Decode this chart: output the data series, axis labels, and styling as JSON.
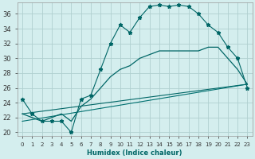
{
  "xlabel": "Humidex (Indice chaleur)",
  "bg_color": "#d4eeee",
  "grid_color": "#b0d0d0",
  "line_color_dark": "#006666",
  "line_color_mid": "#007070",
  "xlim": [
    -0.5,
    23.5
  ],
  "ylim": [
    19.5,
    37.5
  ],
  "yticks": [
    20,
    22,
    24,
    26,
    28,
    30,
    32,
    34,
    36
  ],
  "xticks": [
    0,
    1,
    2,
    3,
    4,
    5,
    6,
    7,
    8,
    9,
    10,
    11,
    12,
    13,
    14,
    15,
    16,
    17,
    18,
    19,
    20,
    21,
    22,
    23
  ],
  "xtick_labels": [
    "0",
    "1",
    "2",
    "3",
    "4",
    "5",
    "6",
    "7",
    "8",
    "9",
    "10",
    "11",
    "12",
    "13",
    "14",
    "15",
    "16",
    "17",
    "18",
    "19",
    "20",
    "21",
    "22",
    "23"
  ],
  "series1_x": [
    0,
    1,
    2,
    3,
    4,
    5,
    6,
    7,
    8,
    9,
    10,
    11,
    12,
    13,
    14,
    15,
    16,
    17,
    18,
    19,
    20,
    21,
    22,
    23
  ],
  "series1_y": [
    24.5,
    22.5,
    21.5,
    21.5,
    21.5,
    20.0,
    24.5,
    25.0,
    28.5,
    32.0,
    34.5,
    33.5,
    35.5,
    37.0,
    37.2,
    37.0,
    37.2,
    37.0,
    36.0,
    34.5,
    33.5,
    31.5,
    30.0,
    26.0
  ],
  "series2_x": [
    0,
    1,
    2,
    3,
    4,
    5,
    6,
    7,
    8,
    9,
    10,
    11,
    12,
    13,
    14,
    15,
    16,
    17,
    18,
    19,
    20,
    21,
    22,
    23
  ],
  "series2_y": [
    22.5,
    22.0,
    21.5,
    22.0,
    22.5,
    21.5,
    23.5,
    24.5,
    26.0,
    27.5,
    28.5,
    29.0,
    30.0,
    30.5,
    31.0,
    31.0,
    31.0,
    31.0,
    31.0,
    31.5,
    31.5,
    30.0,
    28.5,
    26.5
  ],
  "series3_x": [
    0,
    23
  ],
  "series3_y": [
    22.5,
    26.5
  ],
  "series4_x": [
    0,
    23
  ],
  "series4_y": [
    21.5,
    26.5
  ]
}
